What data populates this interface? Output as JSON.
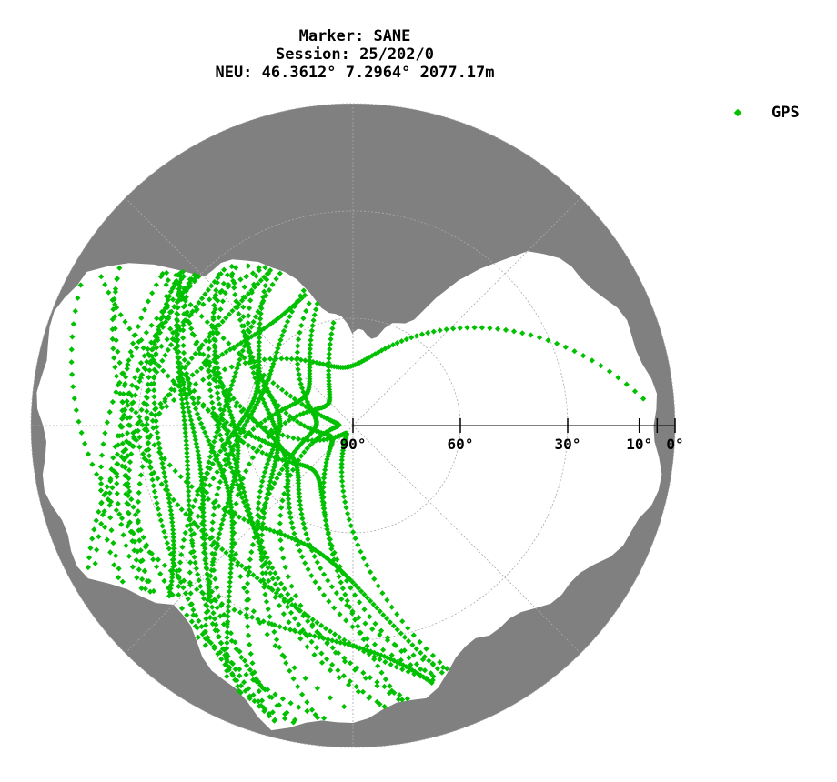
{
  "chart_data": {
    "type": "scatter",
    "projection": "polar-skyplot",
    "title_lines": [
      "Marker: SANE",
      "Session: 25/202/0",
      "NEU: 46.3612° 7.2964° 2077.17m"
    ],
    "series": [
      {
        "name": "GPS",
        "color": "#00c000"
      }
    ],
    "elevation_ticks": [
      {
        "value": 90,
        "label": "90°"
      },
      {
        "value": 60,
        "label": "60°"
      },
      {
        "value": 30,
        "label": "30°"
      },
      {
        "value": 10,
        "label": "10°"
      },
      {
        "value": 0,
        "label": "0°"
      }
    ],
    "elevation_minor_ticks": [
      5
    ],
    "elevation_grid": [
      0,
      30,
      60
    ],
    "azimuth_grid_step_deg": 45,
    "obstruction_color": "#808080",
    "horizon_mask": [
      [
        0,
        64
      ],
      [
        15,
        64
      ],
      [
        30,
        55
      ],
      [
        45,
        20
      ],
      [
        60,
        12
      ],
      [
        75,
        7
      ],
      [
        90,
        5
      ],
      [
        105,
        3
      ],
      [
        120,
        12
      ],
      [
        135,
        18
      ],
      [
        150,
        22
      ],
      [
        165,
        12
      ],
      [
        180,
        8
      ],
      [
        195,
        3
      ],
      [
        210,
        12
      ],
      [
        225,
        20
      ],
      [
        240,
        5
      ],
      [
        255,
        3
      ],
      [
        270,
        3
      ],
      [
        285,
        1
      ],
      [
        300,
        3
      ],
      [
        315,
        30
      ],
      [
        330,
        36
      ],
      [
        345,
        55
      ]
    ],
    "grid": true,
    "legend_position": "top-right"
  },
  "colors": {
    "background": "#ffffff",
    "grid": "#aaaaaa",
    "axis": "#000000"
  }
}
